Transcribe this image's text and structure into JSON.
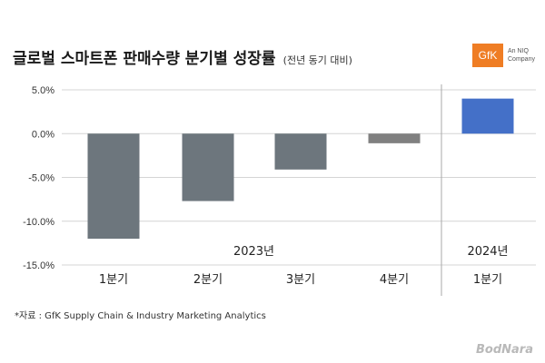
{
  "title": "글로벌 스마트폰 판매수량 분기별 성장률",
  "subtitle": "(전년 동기 대비)",
  "logo": {
    "mark": "GfK",
    "line1": "An NIQ",
    "line2": "Company"
  },
  "source": "*자료 : GfK Supply Chain & Industry Marketing Analytics",
  "watermark": "BodNara",
  "chart_data": {
    "type": "bar",
    "categories": [
      "1분기",
      "2분기",
      "3분기",
      "4분기",
      "1분기"
    ],
    "groups": [
      {
        "label": "2023년",
        "indices": [
          0,
          1,
          2,
          3
        ]
      },
      {
        "label": "2024년",
        "indices": [
          4
        ]
      }
    ],
    "values": [
      -12.0,
      -7.7,
      -4.1,
      -1.1,
      4.0
    ],
    "colors": [
      "#6d767d",
      "#6d767d",
      "#6d767d",
      "#808080",
      "#4470c8"
    ],
    "yticks": [
      5,
      0,
      -5,
      -10,
      -15
    ],
    "ytick_labels": [
      "5.0%",
      "0.0%",
      "-5.0%",
      "-10.0%",
      "-15.0%"
    ],
    "ylim": [
      -15,
      5
    ],
    "grid": true
  }
}
